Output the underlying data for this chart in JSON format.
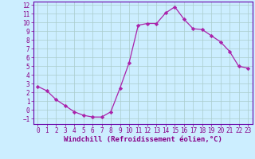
{
  "x": [
    0,
    1,
    2,
    3,
    4,
    5,
    6,
    7,
    8,
    9,
    10,
    11,
    12,
    13,
    14,
    15,
    16,
    17,
    18,
    19,
    20,
    21,
    22,
    23
  ],
  "y": [
    2.7,
    2.2,
    1.2,
    0.5,
    -0.2,
    -0.6,
    -0.8,
    -0.8,
    -0.2,
    2.5,
    5.4,
    9.7,
    9.9,
    9.9,
    11.1,
    11.8,
    10.4,
    9.3,
    9.2,
    8.5,
    7.8,
    6.7,
    5.0,
    4.8
  ],
  "line_color": "#aa22aa",
  "marker": "D",
  "marker_size": 2.2,
  "bg_color": "#cceeff",
  "grid_color": "#aacccc",
  "xlabel": "Windchill (Refroidissement éolien,°C)",
  "xlim": [
    -0.5,
    23.5
  ],
  "ylim": [
    -1.6,
    12.4
  ],
  "yticks": [
    -1,
    0,
    1,
    2,
    3,
    4,
    5,
    6,
    7,
    8,
    9,
    10,
    11,
    12
  ],
  "xticks": [
    0,
    1,
    2,
    3,
    4,
    5,
    6,
    7,
    8,
    9,
    10,
    11,
    12,
    13,
    14,
    15,
    16,
    17,
    18,
    19,
    20,
    21,
    22,
    23
  ],
  "tick_fontsize": 5.5,
  "xlabel_fontsize": 6.5,
  "axis_color": "#880088",
  "spine_color": "#6600aa",
  "linewidth": 0.9
}
